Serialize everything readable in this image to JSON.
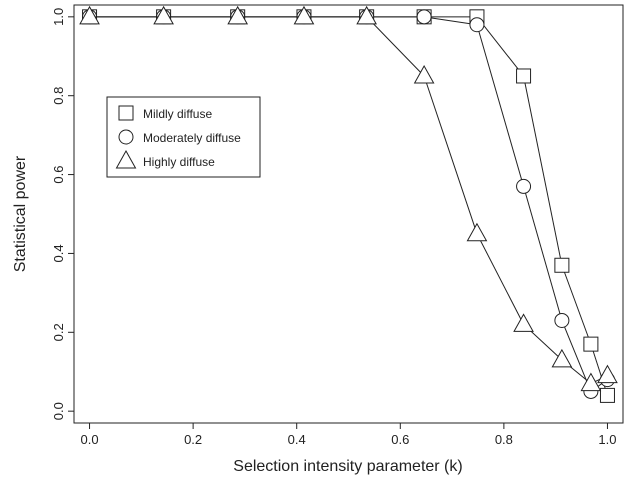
{
  "chart_data": {
    "type": "line",
    "title": "",
    "xlabel": "Selection intensity parameter (k)",
    "ylabel": "Statistical power",
    "xlim": [
      -0.03,
      1.03
    ],
    "ylim": [
      -0.03,
      1.03
    ],
    "xticks": [
      0.0,
      0.2,
      0.4,
      0.6,
      0.8,
      1.0
    ],
    "xtick_labels": [
      "0.0",
      "0.2",
      "0.4",
      "0.6",
      "0.8",
      "1.0"
    ],
    "yticks": [
      0.0,
      0.2,
      0.4,
      0.6,
      0.8,
      1.0
    ],
    "ytick_labels": [
      "0.0",
      "0.2",
      "0.4",
      "0.6",
      "0.8",
      "1.0"
    ],
    "grid": false,
    "legend_position": "middle-left",
    "series": [
      {
        "name": "Mildly diffuse",
        "marker": "square",
        "x": [
          0.0,
          0.143,
          0.286,
          0.414,
          0.535,
          0.646,
          0.748,
          0.838,
          0.912,
          0.968,
          1.0
        ],
        "y": [
          1.0,
          1.0,
          1.0,
          1.0,
          1.0,
          1.0,
          1.0,
          0.85,
          0.37,
          0.17,
          0.04
        ]
      },
      {
        "name": "Moderately diffuse",
        "marker": "circle",
        "x": [
          0.0,
          0.143,
          0.286,
          0.414,
          0.535,
          0.646,
          0.748,
          0.838,
          0.912,
          0.968,
          1.0
        ],
        "y": [
          1.0,
          1.0,
          1.0,
          1.0,
          1.0,
          1.0,
          0.98,
          0.57,
          0.23,
          0.05,
          0.08
        ]
      },
      {
        "name": "Highly diffuse",
        "marker": "triangle",
        "x": [
          0.0,
          0.143,
          0.286,
          0.414,
          0.535,
          0.646,
          0.748,
          0.838,
          0.912,
          0.968,
          1.0
        ],
        "y": [
          1.0,
          1.0,
          1.0,
          1.0,
          1.0,
          0.85,
          0.45,
          0.22,
          0.13,
          0.07,
          0.09
        ]
      }
    ]
  }
}
